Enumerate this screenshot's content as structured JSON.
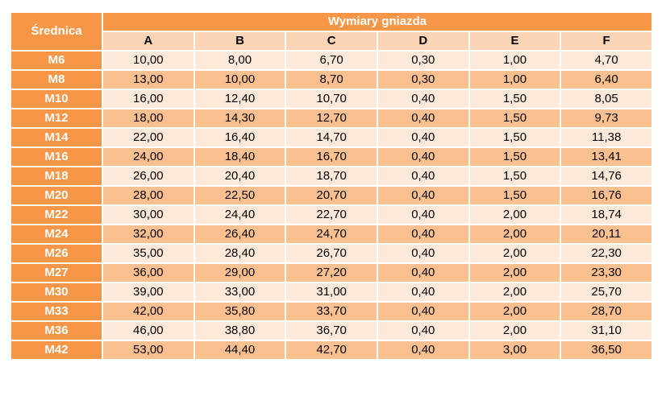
{
  "table": {
    "size_header": "Średnica",
    "group_header": "Wymiary gniazda",
    "columns": [
      "A",
      "B",
      "C",
      "D",
      "E",
      "F"
    ],
    "rows": [
      {
        "size": "M6",
        "values": [
          "10,00",
          "8,00",
          "6,70",
          "0,30",
          "1,00",
          "4,70"
        ]
      },
      {
        "size": "M8",
        "values": [
          "13,00",
          "10,00",
          "8,70",
          "0,30",
          "1,00",
          "6,40"
        ]
      },
      {
        "size": "M10",
        "values": [
          "16,00",
          "12,40",
          "10,70",
          "0,40",
          "1,50",
          "8,05"
        ]
      },
      {
        "size": "M12",
        "values": [
          "18,00",
          "14,30",
          "12,70",
          "0,40",
          "1,50",
          "9,73"
        ]
      },
      {
        "size": "M14",
        "values": [
          "22,00",
          "16,40",
          "14,70",
          "0,40",
          "1,50",
          "11,38"
        ]
      },
      {
        "size": "M16",
        "values": [
          "24,00",
          "18,40",
          "16,70",
          "0,40",
          "1,50",
          "13,41"
        ]
      },
      {
        "size": "M18",
        "values": [
          "26,00",
          "20,40",
          "18,70",
          "0,40",
          "1,50",
          "14,76"
        ]
      },
      {
        "size": "M20",
        "values": [
          "28,00",
          "22,50",
          "20,70",
          "0,40",
          "1,50",
          "16,76"
        ]
      },
      {
        "size": "M22",
        "values": [
          "30,00",
          "24,40",
          "22,70",
          "0,40",
          "2,00",
          "18,74"
        ]
      },
      {
        "size": "M24",
        "values": [
          "32,00",
          "26,40",
          "24,70",
          "0,40",
          "2,00",
          "20,11"
        ]
      },
      {
        "size": "M26",
        "values": [
          "35,00",
          "28,40",
          "26,70",
          "0,40",
          "2,00",
          "22,30"
        ]
      },
      {
        "size": "M27",
        "values": [
          "36,00",
          "29,00",
          "27,20",
          "0,40",
          "2,00",
          "23,30"
        ]
      },
      {
        "size": "M30",
        "values": [
          "39,00",
          "33,00",
          "31,00",
          "0,40",
          "2,00",
          "25,70"
        ]
      },
      {
        "size": "M33",
        "values": [
          "42,00",
          "35,80",
          "33,70",
          "0,40",
          "2,00",
          "28,70"
        ]
      },
      {
        "size": "M36",
        "values": [
          "46,00",
          "38,80",
          "36,70",
          "0,40",
          "2,00",
          "31,10"
        ]
      },
      {
        "size": "M42",
        "values": [
          "53,00",
          "44,40",
          "42,70",
          "0,40",
          "3,00",
          "36,50"
        ]
      }
    ]
  },
  "colors": {
    "header_orange": "#f79646",
    "column_header": "#fbd5b5",
    "row_light": "#fde9d9",
    "row_dark": "#fac090"
  }
}
